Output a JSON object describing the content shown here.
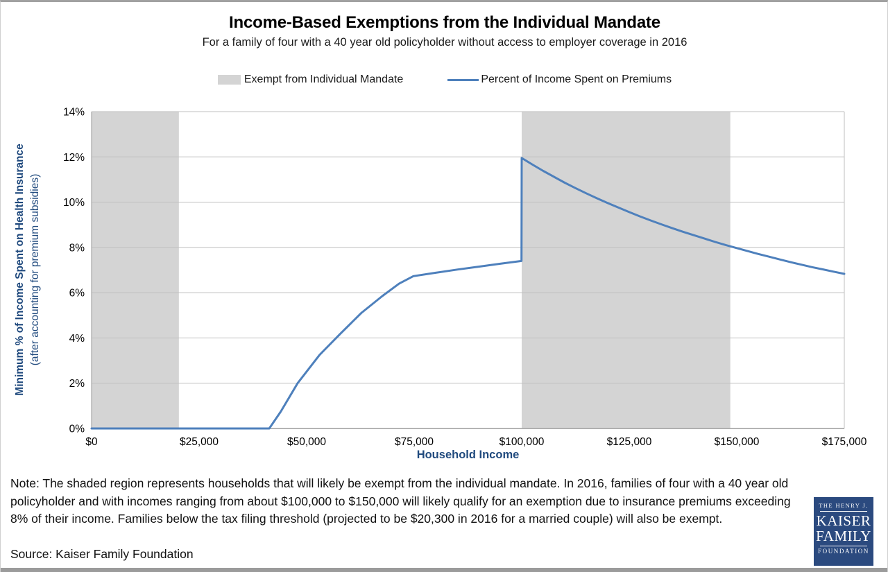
{
  "header": {
    "title": "Income-Based Exemptions from the Individual Mandate",
    "subtitle": "For a family of four with a 40 year old policyholder without access to employer coverage in 2016"
  },
  "legend": {
    "exempt_label": "Exempt from Individual Mandate",
    "line_label": "Percent of Income Spent on Premiums"
  },
  "chart_data": {
    "type": "line",
    "title": "Income-Based Exemptions from the Individual Mandate",
    "xlabel": "Household Income",
    "ylabel": "Minimum % of  Income Spent on Health Insurance",
    "ylabel_sub": "(after accounting for premium subsidies)",
    "xlim": [
      0,
      175000
    ],
    "ylim": [
      0,
      14
    ],
    "grid": "horizontal",
    "legend_position": "top",
    "x_ticks": [
      {
        "value": 0,
        "label": "$0"
      },
      {
        "value": 25000,
        "label": "$25,000"
      },
      {
        "value": 50000,
        "label": "$50,000"
      },
      {
        "value": 75000,
        "label": "$75,000"
      },
      {
        "value": 100000,
        "label": "$100,000"
      },
      {
        "value": 125000,
        "label": "$125,000"
      },
      {
        "value": 150000,
        "label": "$150,000"
      },
      {
        "value": 175000,
        "label": "$175,000"
      }
    ],
    "y_ticks": [
      {
        "value": 0,
        "label": "0%"
      },
      {
        "value": 2,
        "label": "2%"
      },
      {
        "value": 4,
        "label": "4%"
      },
      {
        "value": 6,
        "label": "6%"
      },
      {
        "value": 8,
        "label": "8%"
      },
      {
        "value": 10,
        "label": "10%"
      },
      {
        "value": 12,
        "label": "12%"
      },
      {
        "value": 14,
        "label": "14%"
      }
    ],
    "shaded_regions": [
      {
        "name": "Exempt from Individual Mandate (below tax filing threshold)",
        "x0": 0,
        "x1": 20300
      },
      {
        "name": "Exempt from Individual Mandate (premiums exceed 8% of income)",
        "x0": 100000,
        "x1": 148500
      }
    ],
    "series": [
      {
        "name": "Percent of Income Spent on Premiums",
        "points": [
          [
            0,
            0
          ],
          [
            20300,
            0
          ],
          [
            41300,
            0
          ],
          [
            44000,
            0.75
          ],
          [
            47900,
            2.0
          ],
          [
            53000,
            3.25
          ],
          [
            57900,
            4.2
          ],
          [
            62700,
            5.1
          ],
          [
            67600,
            5.85
          ],
          [
            71500,
            6.4
          ],
          [
            74800,
            6.73
          ],
          [
            80000,
            6.88
          ],
          [
            85000,
            7.02
          ],
          [
            90000,
            7.15
          ],
          [
            95000,
            7.28
          ],
          [
            99950,
            7.4
          ],
          [
            100000,
            11.95
          ],
          [
            102500,
            11.66
          ],
          [
            105000,
            11.38
          ],
          [
            107500,
            11.12
          ],
          [
            110000,
            10.86
          ],
          [
            112500,
            10.62
          ],
          [
            115000,
            10.39
          ],
          [
            117500,
            10.17
          ],
          [
            120000,
            9.96
          ],
          [
            122500,
            9.76
          ],
          [
            125000,
            9.56
          ],
          [
            127500,
            9.37
          ],
          [
            130000,
            9.19
          ],
          [
            132500,
            9.02
          ],
          [
            135000,
            8.85
          ],
          [
            137500,
            8.69
          ],
          [
            140000,
            8.54
          ],
          [
            142500,
            8.39
          ],
          [
            145000,
            8.24
          ],
          [
            147500,
            8.1
          ],
          [
            150000,
            7.97
          ],
          [
            152500,
            7.84
          ],
          [
            155000,
            7.71
          ],
          [
            157500,
            7.59
          ],
          [
            160000,
            7.47
          ],
          [
            162500,
            7.35
          ],
          [
            165000,
            7.24
          ],
          [
            167500,
            7.13
          ],
          [
            170000,
            7.03
          ],
          [
            172500,
            6.93
          ],
          [
            175000,
            6.83
          ]
        ]
      }
    ],
    "colors": {
      "line": "#4e80bc",
      "shade": "#d4d4d4",
      "grid": "#bfbfbf",
      "axis": "#9b9b9b",
      "axis_title": "#1f497d",
      "tick_text": "#000000"
    }
  },
  "note": {
    "text": "Note: The shaded region represents households that will likely be exempt from the individual mandate. In 2016, families of four with a 40 year old policyholder and with incomes ranging from about $100,000 to $150,000 will likely qualify for an exemption due to insurance premiums exceeding 8% of their income. Families below the tax filing threshold (projected to be $20,300 in 2016 for a married couple) will also be exempt.",
    "source": "Source: Kaiser Family Foundation"
  },
  "logo": {
    "line1": "THE HENRY J.",
    "line2": "KAISER",
    "line3": "FAMILY",
    "line4": "FOUNDATION",
    "bg_color": "#2b4a7f"
  }
}
